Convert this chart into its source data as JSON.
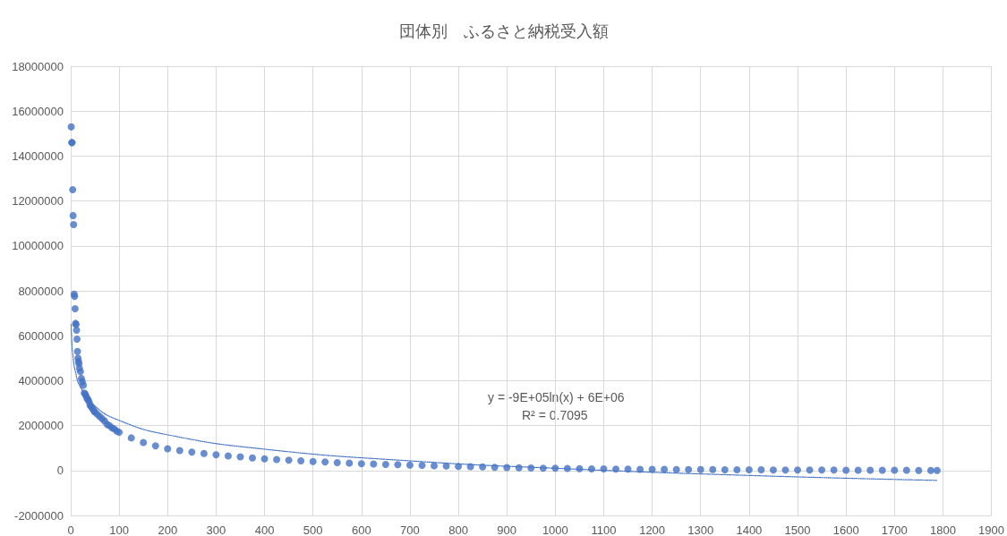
{
  "chart_data": {
    "type": "scatter",
    "title": "団体別　ふるさと納税受入額",
    "annotations": [
      "y = -9E+05ln(x) + 6E+06",
      "R² = 0.7095"
    ],
    "xlim": [
      0,
      1900
    ],
    "xticks": [
      0,
      100,
      200,
      300,
      400,
      500,
      600,
      700,
      800,
      900,
      1000,
      1100,
      1200,
      1300,
      1400,
      1500,
      1600,
      1700,
      1800,
      1900
    ],
    "ylim": [
      -2000000,
      18000000
    ],
    "yticks": [
      -2000000,
      0,
      2000000,
      4000000,
      6000000,
      8000000,
      10000000,
      12000000,
      14000000,
      16000000,
      18000000
    ],
    "grid": true,
    "marker": "circle",
    "series": [
      {
        "color": "#4472c4",
        "x": [
          1,
          2,
          3,
          4,
          5,
          6,
          7,
          8,
          9,
          10,
          11,
          12,
          13,
          14,
          15,
          16,
          17,
          18,
          20,
          22,
          24,
          26,
          28,
          30,
          32,
          34,
          36,
          38,
          40,
          42,
          45,
          48,
          50,
          55,
          60,
          65,
          70,
          75,
          80,
          85,
          90,
          95,
          100,
          125,
          150,
          175,
          200,
          225,
          250,
          275,
          300,
          325,
          350,
          375,
          400,
          425,
          450,
          475,
          500,
          525,
          550,
          575,
          600,
          625,
          650,
          675,
          700,
          725,
          750,
          775,
          800,
          825,
          850,
          875,
          900,
          925,
          950,
          975,
          1000,
          1025,
          1050,
          1075,
          1100,
          1125,
          1150,
          1175,
          1200,
          1225,
          1250,
          1275,
          1300,
          1325,
          1350,
          1375,
          1400,
          1425,
          1450,
          1475,
          1500,
          1525,
          1550,
          1575,
          1600,
          1625,
          1650,
          1675,
          1700,
          1725,
          1750,
          1775,
          1788
        ],
        "values": [
          15300000,
          14600000,
          14600000,
          12500000,
          11350000,
          10950000,
          7850000,
          7750000,
          7200000,
          6550000,
          6500000,
          6250000,
          5850000,
          5300000,
          5000000,
          4850000,
          4750000,
          4550000,
          4400000,
          4100000,
          3950000,
          3800000,
          3450000,
          3400000,
          3300000,
          3200000,
          3150000,
          3050000,
          2900000,
          2850000,
          2750000,
          2650000,
          2600000,
          2500000,
          2400000,
          2300000,
          2200000,
          2050000,
          2000000,
          1900000,
          1850000,
          1750000,
          1700000,
          1450000,
          1250000,
          1100000,
          970000,
          890000,
          820000,
          760000,
          700000,
          650000,
          610000,
          560000,
          520000,
          490000,
          460000,
          430000,
          400000,
          380000,
          350000,
          330000,
          300000,
          290000,
          270000,
          260000,
          240000,
          230000,
          210000,
          200000,
          180000,
          170000,
          160000,
          140000,
          130000,
          120000,
          110000,
          100000,
          100000,
          90000,
          80000,
          70000,
          70000,
          60000,
          60000,
          50000,
          50000,
          50000,
          40000,
          40000,
          40000,
          40000,
          30000,
          30000,
          30000,
          30000,
          20000,
          20000,
          20000,
          20000,
          20000,
          20000,
          10000,
          10000,
          10000,
          10000,
          10000,
          10000,
          0,
          0,
          0
        ]
      },
      {
        "type": "line",
        "color": "#4472c4",
        "line_style": "dotted",
        "marker": "none",
        "x": [
          1,
          2,
          5,
          10,
          20,
          50,
          100,
          200,
          400,
          700,
          1000,
          1400,
          1788
        ],
        "values": [
          6500000,
          5860000,
          5010000,
          4370000,
          3720000,
          2870000,
          2230000,
          1590000,
          950000,
          430000,
          100000,
          -220000,
          -440000
        ]
      }
    ]
  }
}
